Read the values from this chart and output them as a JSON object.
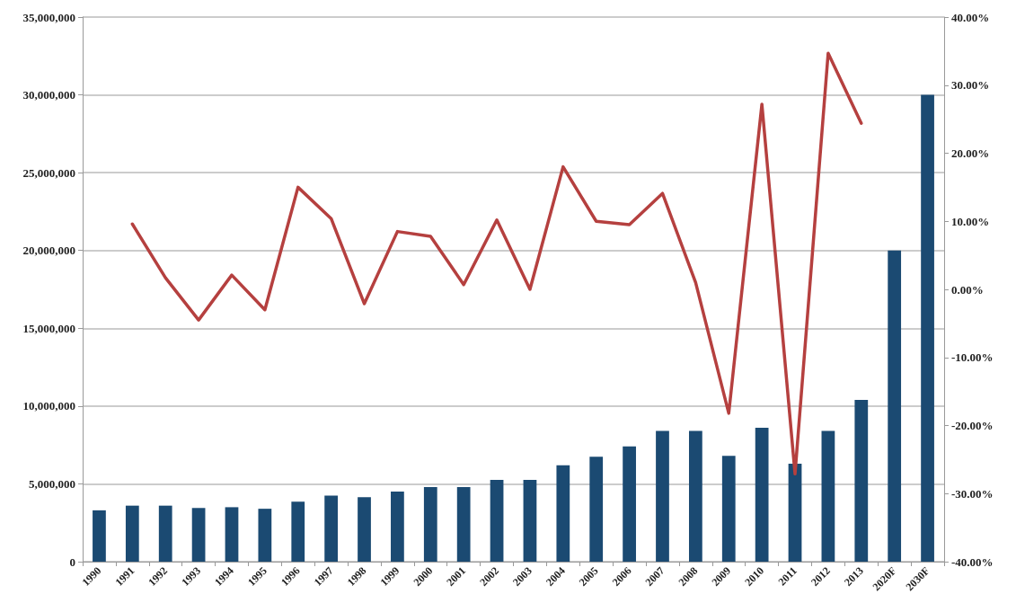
{
  "chart_data": {
    "type": "bar",
    "categories": [
      "1990",
      "1991",
      "1992",
      "1993",
      "1994",
      "1995",
      "1996",
      "1997",
      "1998",
      "1999",
      "2000",
      "2001",
      "2002",
      "2003",
      "2004",
      "2005",
      "2006",
      "2007",
      "2008",
      "2009",
      "2010",
      "2011",
      "2012",
      "2013",
      "2020F",
      "2030F"
    ],
    "series": [
      {
        "color": "#1b4a72",
        "values": [
          3300000,
          3600000,
          3600000,
          3450000,
          3500000,
          3400000,
          3850000,
          4250000,
          4150000,
          4500000,
          4800000,
          4800000,
          5250000,
          5250000,
          6200000,
          6750000,
          7400000,
          8400000,
          8400000,
          6800000,
          8600000,
          6300000,
          8400000,
          10400000,
          20000000,
          30000000
        ]
      },
      {
        "type": "line",
        "axis": "y2",
        "color": "#b5403f",
        "values": [
          null,
          9.6,
          1.7,
          -4.5,
          2.1,
          -3.0,
          15.0,
          10.4,
          -2.1,
          8.5,
          7.8,
          0.7,
          10.2,
          0.0,
          18.0,
          10.0,
          9.5,
          14.1,
          1.0,
          -18.2,
          27.2,
          -27.1,
          34.7,
          24.4,
          null,
          null
        ]
      }
    ],
    "ylim": [
      0,
      35000000
    ],
    "yticks": [
      {
        "value": 0,
        "label": "0"
      },
      {
        "value": 5000000,
        "label": "5,000,000"
      },
      {
        "value": 10000000,
        "label": "10,000,000"
      },
      {
        "value": 15000000,
        "label": "15,000,000"
      },
      {
        "value": 20000000,
        "label": "20,000,000"
      },
      {
        "value": 25000000,
        "label": "25,000,000"
      },
      {
        "value": 30000000,
        "label": "30,000,000"
      },
      {
        "value": 35000000,
        "label": "35,000,000"
      }
    ],
    "y2lim": [
      -40,
      40
    ],
    "y2ticks": [
      {
        "value": -40,
        "label": "-40.00%"
      },
      {
        "value": -30,
        "label": "-30.00%"
      },
      {
        "value": -20,
        "label": "-20.00%"
      },
      {
        "value": -10,
        "label": "-10.00%"
      },
      {
        "value": 0,
        "label": "0.00%"
      },
      {
        "value": 10,
        "label": "10.00%"
      },
      {
        "value": 20,
        "label": "20.00%"
      },
      {
        "value": 30,
        "label": "30.00%"
      },
      {
        "value": 40,
        "label": "40.00%"
      }
    ],
    "grid": "y",
    "marker": "none",
    "line_style": "solid"
  }
}
